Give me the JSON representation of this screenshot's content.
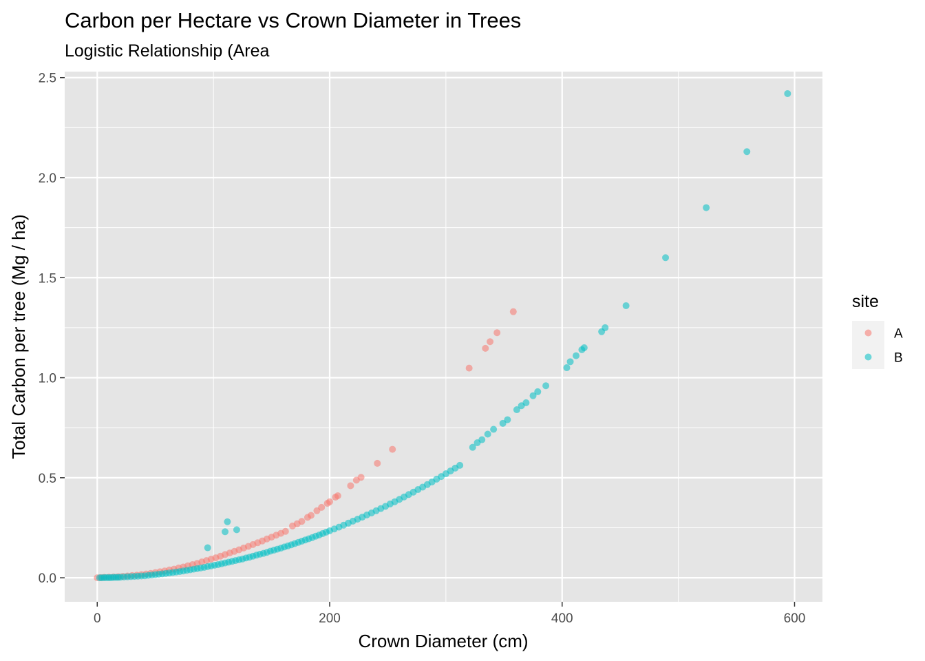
{
  "chart_data": {
    "type": "scatter",
    "title": "Carbon per Hectare vs Crown Diameter in Trees",
    "subtitle": "Logistic Relationship (Area",
    "xlabel": "Crown Diameter (cm)",
    "ylabel": "Total Carbon per tree (Mg / ha)",
    "xlim": [
      -28,
      624
    ],
    "ylim": [
      -0.12,
      2.53
    ],
    "x_ticks": [
      0,
      200,
      400,
      600
    ],
    "x_tick_labels": [
      "0",
      "200",
      "400",
      "600"
    ],
    "y_ticks": [
      0,
      0.5,
      1,
      1.5,
      2,
      2.5
    ],
    "y_tick_labels": [
      "0.0",
      "0.5",
      "1.0",
      "1.5",
      "2.0",
      "2.5"
    ],
    "grid": true,
    "legend": {
      "title": "site",
      "position": "right"
    },
    "colors": {
      "panel_bg": "#e5e5e5",
      "grid": "#ffffff",
      "A": "#f8766d",
      "B": "#00bfc4"
    },
    "point_opacity": 0.55,
    "series": [
      {
        "name": "A",
        "color": "#f8766d",
        "points": [
          [
            0,
            0
          ],
          [
            3,
            0.001
          ],
          [
            6,
            0.002
          ],
          [
            10,
            0.003
          ],
          [
            14,
            0.004
          ],
          [
            18,
            0.005
          ],
          [
            22,
            0.007
          ],
          [
            26,
            0.009
          ],
          [
            30,
            0.011
          ],
          [
            34,
            0.013
          ],
          [
            38,
            0.016
          ],
          [
            42,
            0.019
          ],
          [
            46,
            0.022
          ],
          [
            50,
            0.026
          ],
          [
            54,
            0.03
          ],
          [
            58,
            0.034
          ],
          [
            62,
            0.039
          ],
          [
            66,
            0.043
          ],
          [
            70,
            0.049
          ],
          [
            74,
            0.054
          ],
          [
            78,
            0.06
          ],
          [
            82,
            0.066
          ],
          [
            86,
            0.072
          ],
          [
            90,
            0.079
          ],
          [
            94,
            0.086
          ],
          [
            98,
            0.093
          ],
          [
            102,
            0.1
          ],
          [
            106,
            0.108
          ],
          [
            110,
            0.116
          ],
          [
            114,
            0.124
          ],
          [
            118,
            0.132
          ],
          [
            122,
            0.14
          ],
          [
            126,
            0.149
          ],
          [
            130,
            0.157
          ],
          [
            134,
            0.166
          ],
          [
            138,
            0.175
          ],
          [
            142,
            0.184
          ],
          [
            146,
            0.194
          ],
          [
            150,
            0.203
          ],
          [
            154,
            0.213
          ],
          [
            158,
            0.222
          ],
          [
            162,
            0.232
          ],
          [
            168,
            0.259
          ],
          [
            172,
            0.27
          ],
          [
            176,
            0.282
          ],
          [
            181,
            0.302
          ],
          [
            184,
            0.312
          ],
          [
            189,
            0.335
          ],
          [
            193,
            0.352
          ],
          [
            198,
            0.372
          ],
          [
            200,
            0.38
          ],
          [
            205,
            0.403
          ],
          [
            207,
            0.41
          ],
          [
            218,
            0.46
          ],
          [
            223,
            0.488
          ],
          [
            227,
            0.502
          ],
          [
            241,
            0.572
          ],
          [
            254,
            0.642
          ],
          [
            320,
            1.048
          ],
          [
            334,
            1.147
          ],
          [
            338,
            1.18
          ],
          [
            344,
            1.225
          ],
          [
            358,
            1.33
          ]
        ]
      },
      {
        "name": "B",
        "color": "#00bfc4",
        "points": [
          [
            2,
            0
          ],
          [
            4,
            0
          ],
          [
            6,
            0.001
          ],
          [
            8,
            0.001
          ],
          [
            10,
            0.001
          ],
          [
            12,
            0.001
          ],
          [
            14,
            0.002
          ],
          [
            16,
            0.002
          ],
          [
            18,
            0.002
          ],
          [
            20,
            0.003
          ],
          [
            23,
            0.004
          ],
          [
            26,
            0.005
          ],
          [
            29,
            0.006
          ],
          [
            32,
            0.007
          ],
          [
            35,
            0.008
          ],
          [
            38,
            0.009
          ],
          [
            41,
            0.01
          ],
          [
            44,
            0.012
          ],
          [
            47,
            0.014
          ],
          [
            50,
            0.016
          ],
          [
            53,
            0.018
          ],
          [
            56,
            0.02
          ],
          [
            59,
            0.022
          ],
          [
            62,
            0.024
          ],
          [
            65,
            0.026
          ],
          [
            68,
            0.029
          ],
          [
            71,
            0.031
          ],
          [
            74,
            0.034
          ],
          [
            77,
            0.037
          ],
          [
            80,
            0.04
          ],
          [
            83,
            0.043
          ],
          [
            86,
            0.046
          ],
          [
            89,
            0.049
          ],
          [
            92,
            0.052
          ],
          [
            95,
            0.056
          ],
          [
            98,
            0.059
          ],
          [
            101,
            0.063
          ],
          [
            104,
            0.066
          ],
          [
            107,
            0.07
          ],
          [
            110,
            0.074
          ],
          [
            113,
            0.078
          ],
          [
            116,
            0.082
          ],
          [
            119,
            0.086
          ],
          [
            122,
            0.09
          ],
          [
            125,
            0.094
          ],
          [
            128,
            0.099
          ],
          [
            131,
            0.103
          ],
          [
            134,
            0.108
          ],
          [
            137,
            0.113
          ],
          [
            140,
            0.118
          ],
          [
            143,
            0.122
          ],
          [
            146,
            0.127
          ],
          [
            149,
            0.133
          ],
          [
            152,
            0.138
          ],
          [
            155,
            0.143
          ],
          [
            158,
            0.148
          ],
          [
            161,
            0.154
          ],
          [
            164,
            0.159
          ],
          [
            167,
            0.165
          ],
          [
            170,
            0.171
          ],
          [
            173,
            0.177
          ],
          [
            176,
            0.183
          ],
          [
            179,
            0.189
          ],
          [
            182,
            0.195
          ],
          [
            185,
            0.201
          ],
          [
            188,
            0.208
          ],
          [
            191,
            0.214
          ],
          [
            194,
            0.221
          ],
          [
            197,
            0.228
          ],
          [
            200,
            0.235
          ],
          [
            204,
            0.244
          ],
          [
            208,
            0.253
          ],
          [
            212,
            0.263
          ],
          [
            216,
            0.273
          ],
          [
            220,
            0.283
          ],
          [
            224,
            0.293
          ],
          [
            228,
            0.303
          ],
          [
            232,
            0.314
          ],
          [
            236,
            0.324
          ],
          [
            240,
            0.335
          ],
          [
            244,
            0.346
          ],
          [
            248,
            0.357
          ],
          [
            252,
            0.369
          ],
          [
            256,
            0.38
          ],
          [
            260,
            0.392
          ],
          [
            264,
            0.404
          ],
          [
            268,
            0.416
          ],
          [
            272,
            0.428
          ],
          [
            276,
            0.441
          ],
          [
            280,
            0.453
          ],
          [
            284,
            0.466
          ],
          [
            288,
            0.479
          ],
          [
            292,
            0.493
          ],
          [
            296,
            0.506
          ],
          [
            300,
            0.52
          ],
          [
            304,
            0.534
          ],
          [
            308,
            0.548
          ],
          [
            312,
            0.562
          ],
          [
            323,
            0.652
          ],
          [
            327,
            0.675
          ],
          [
            331,
            0.69
          ],
          [
            336,
            0.718
          ],
          [
            341,
            0.742
          ],
          [
            349,
            0.772
          ],
          [
            353,
            0.79
          ],
          [
            361,
            0.84
          ],
          [
            365,
            0.86
          ],
          [
            369,
            0.875
          ],
          [
            375,
            0.91
          ],
          [
            379,
            0.93
          ],
          [
            386,
            0.96
          ],
          [
            404,
            1.05
          ],
          [
            407,
            1.08
          ],
          [
            412,
            1.11
          ],
          [
            417,
            1.14
          ],
          [
            419,
            1.15
          ],
          [
            434,
            1.23
          ],
          [
            437,
            1.25
          ],
          [
            455,
            1.36
          ],
          [
            489,
            1.6
          ],
          [
            524,
            1.85
          ],
          [
            559,
            2.13
          ],
          [
            594,
            2.42
          ],
          [
            95,
            0.15
          ],
          [
            110,
            0.23
          ],
          [
            112,
            0.28
          ],
          [
            120,
            0.24
          ]
        ]
      }
    ]
  }
}
